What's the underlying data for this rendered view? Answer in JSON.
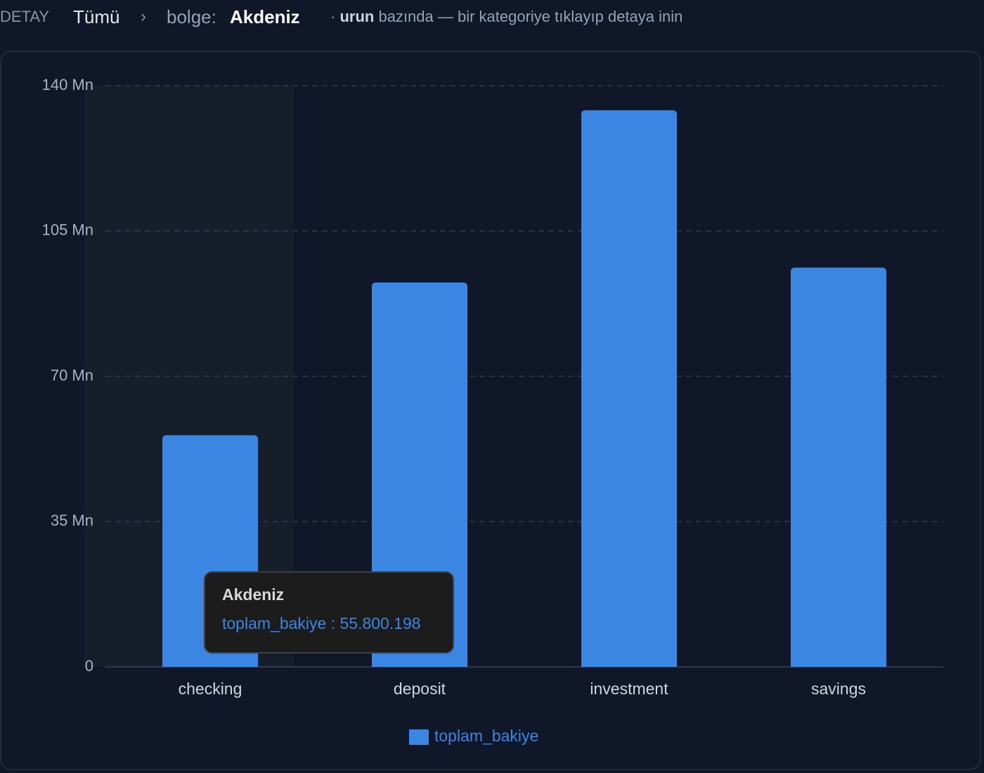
{
  "breadcrumb": {
    "label": "DETAY",
    "root": "Tümü",
    "separator": "›",
    "key": "bolge:",
    "value": "Akdeniz"
  },
  "hint": {
    "prefix": "·",
    "field": "urun",
    "text": "bazında — bir kategoriye tıklayıp detaya inin"
  },
  "chart_data": {
    "type": "bar",
    "categories": [
      "checking",
      "deposit",
      "investment",
      "savings"
    ],
    "series": [
      {
        "name": "toplam_bakiye",
        "color": "#3a86e2",
        "values": [
          55800198,
          92600000,
          134100000,
          96200000
        ]
      }
    ],
    "ylim": [
      0,
      140000000
    ],
    "yticks": [
      {
        "value": 0,
        "label": "0"
      },
      {
        "value": 35000000,
        "label": "35 Mn"
      },
      {
        "value": 70000000,
        "label": "70 Mn"
      },
      {
        "value": 105000000,
        "label": "105 Mn"
      },
      {
        "value": 140000000,
        "label": "140 Mn"
      }
    ],
    "grid": true,
    "legend": "bottom",
    "tooltip": {
      "title": "Akdeniz",
      "text": "toplam_bakiye : 55.800.198"
    }
  }
}
